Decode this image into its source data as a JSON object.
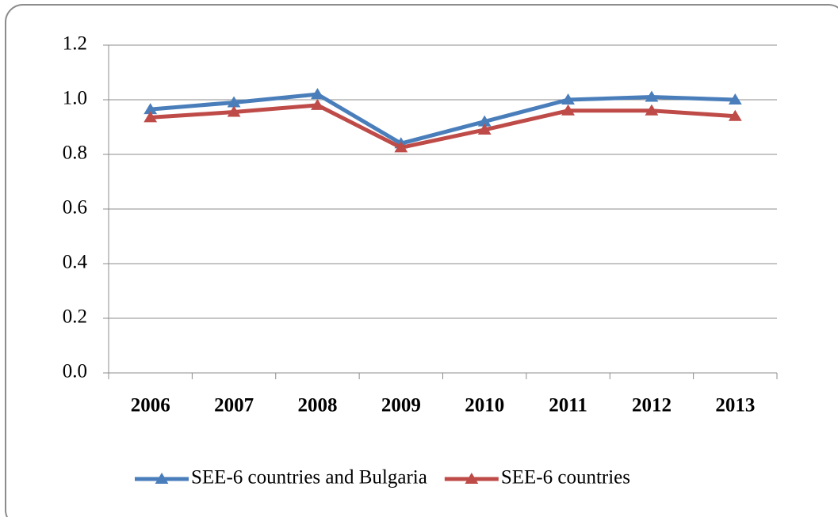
{
  "chart_data": {
    "type": "line",
    "categories": [
      "2006",
      "2007",
      "2008",
      "2009",
      "2010",
      "2011",
      "2012",
      "2013"
    ],
    "series": [
      {
        "name": "SEE-6 countries and Bulgaria",
        "color": "#4a7ebb",
        "values": [
          0.965,
          0.99,
          1.02,
          0.84,
          0.92,
          1.0,
          1.01,
          1.0
        ]
      },
      {
        "name": "SEE-6 countries",
        "color": "#be4b48",
        "values": [
          0.935,
          0.955,
          0.98,
          0.825,
          0.89,
          0.96,
          0.96,
          0.94
        ]
      }
    ],
    "ylim": [
      0,
      1.2
    ],
    "yticks": [
      {
        "value": 0,
        "label": "0.0"
      },
      0.2,
      0.4,
      0.6,
      0.8,
      {
        "value": 1,
        "label": "1.0"
      },
      1.2
    ],
    "grid": true,
    "legend": "bottom"
  }
}
